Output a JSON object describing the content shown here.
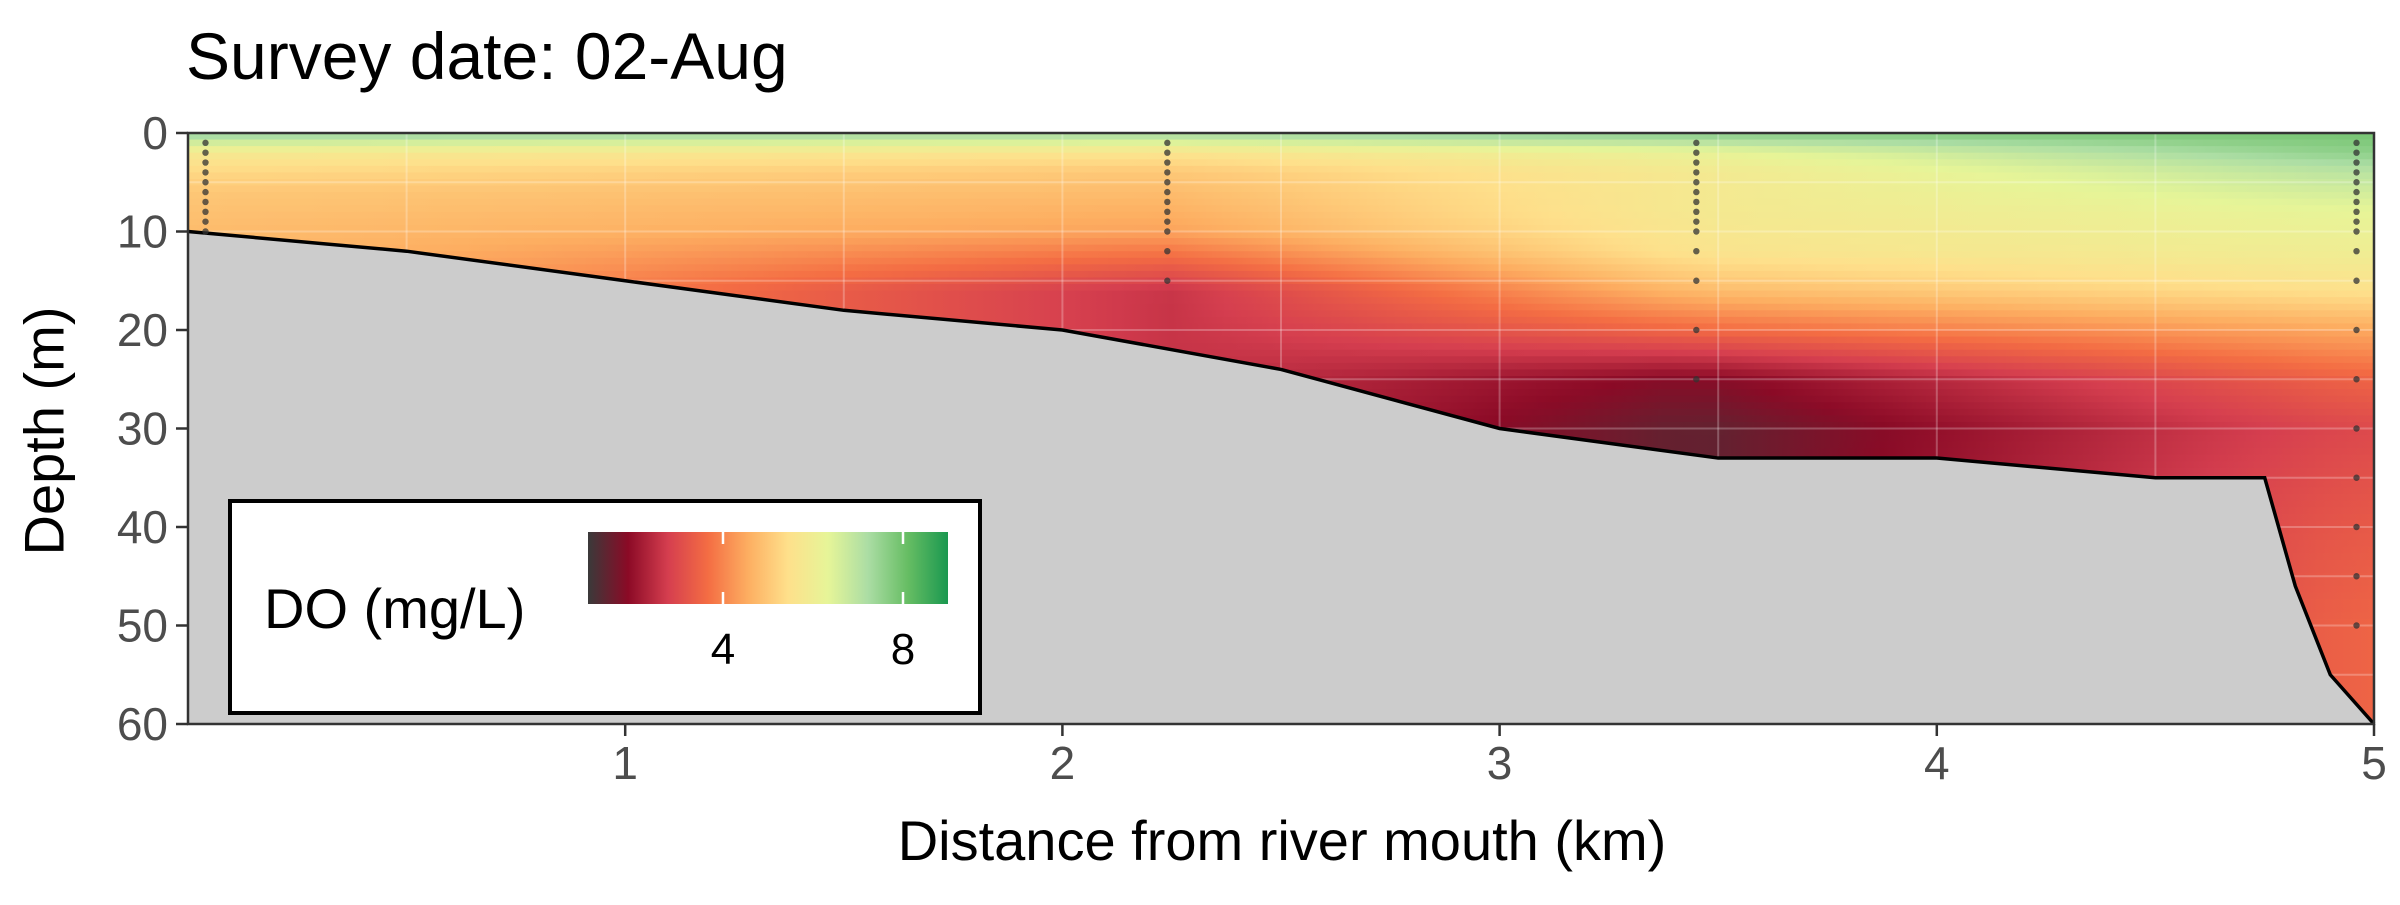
{
  "chart_data": {
    "type": "heatmap",
    "title": "Survey date: 02-Aug",
    "xlabel": "Distance from river mouth (km)",
    "ylabel": "Depth (m)",
    "xlim": [
      0,
      5
    ],
    "ylim": [
      0,
      60
    ],
    "y_reversed": true,
    "x_ticks": [
      1,
      2,
      3,
      4,
      5
    ],
    "y_ticks": [
      0,
      10,
      20,
      30,
      40,
      50,
      60
    ],
    "grid": true,
    "legend": {
      "title": "DO (mg/L)",
      "placement": "bottom-left inside",
      "ticks": [
        4,
        8
      ],
      "range": [
        1,
        9
      ],
      "colors": [
        "#3a3a3a",
        "#8b0a26",
        "#d53e4f",
        "#f46d43",
        "#fdae61",
        "#fee08b",
        "#e6f598",
        "#abdda4",
        "#66bd63",
        "#1a9850"
      ]
    },
    "bottom_profile": {
      "distance_km": [
        0,
        0.5,
        1,
        1.5,
        2,
        2.5,
        3,
        3.5,
        4,
        4.5,
        4.75,
        4.82,
        4.9,
        5
      ],
      "depth_m": [
        10,
        12,
        15,
        18,
        20,
        24,
        30,
        33,
        33,
        35,
        35,
        46,
        55,
        60
      ]
    },
    "sampling_stations": [
      {
        "distance_km": 0.04,
        "depths_m": [
          1,
          2,
          3,
          4,
          5,
          6,
          7,
          8,
          9,
          10
        ]
      },
      {
        "distance_km": 2.24,
        "depths_m": [
          1,
          2,
          3,
          4,
          5,
          6,
          7,
          8,
          9,
          10,
          12,
          15
        ]
      },
      {
        "distance_km": 3.45,
        "depths_m": [
          1,
          2,
          3,
          4,
          5,
          6,
          7,
          8,
          9,
          10,
          12,
          15,
          20,
          25
        ]
      },
      {
        "distance_km": 4.96,
        "depths_m": [
          1,
          2,
          3,
          4,
          5,
          6,
          7,
          8,
          9,
          10,
          12,
          15,
          20,
          25,
          30,
          35,
          40,
          45,
          50
        ]
      }
    ],
    "do_profiles": [
      {
        "distance_km": 0.0,
        "depths_m": [
          0,
          2,
          4,
          6,
          10
        ],
        "do": [
          7.5,
          5.8,
          5.3,
          5.0,
          4.8
        ]
      },
      {
        "distance_km": 2.24,
        "depths_m": [
          0,
          2,
          4,
          6,
          10,
          14,
          16
        ],
        "do": [
          7.3,
          5.6,
          5.0,
          4.8,
          4.4,
          3.2,
          2.6
        ]
      },
      {
        "distance_km": 3.45,
        "depths_m": [
          0,
          2,
          4,
          8,
          12,
          16,
          20,
          25,
          30,
          33
        ],
        "do": [
          7.7,
          6.2,
          5.8,
          5.8,
          5.6,
          4.8,
          3.6,
          1.8,
          1.4,
          1.4
        ]
      },
      {
        "distance_km": 4.96,
        "depths_m": [
          0,
          2,
          4,
          8,
          12,
          16,
          20,
          25,
          30,
          40,
          50,
          60
        ],
        "do": [
          7.9,
          7.6,
          7.0,
          6.3,
          6.0,
          5.5,
          4.5,
          3.5,
          3.0,
          3.3,
          3.5,
          3.5
        ]
      }
    ]
  }
}
